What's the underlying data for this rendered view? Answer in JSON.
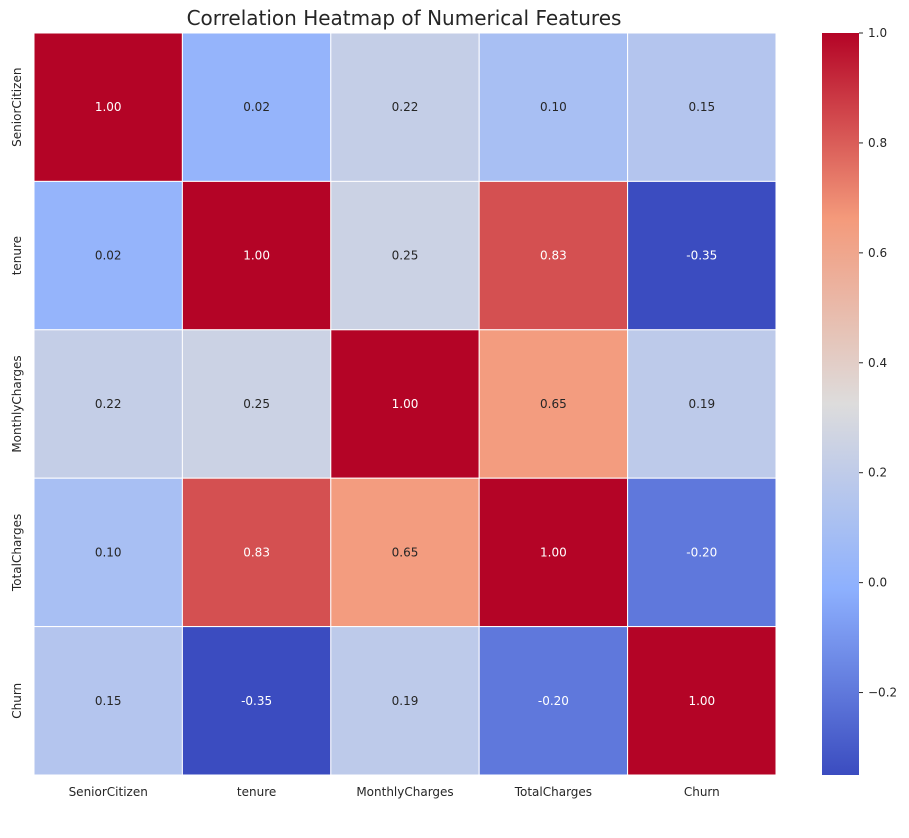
{
  "chart_data": {
    "type": "heatmap",
    "title": "Correlation Heatmap of Numerical Features",
    "x_labels": [
      "SeniorCitizen",
      "tenure",
      "MonthlyCharges",
      "TotalCharges",
      "Churn"
    ],
    "y_labels": [
      "SeniorCitizen",
      "tenure",
      "MonthlyCharges",
      "TotalCharges",
      "Churn"
    ],
    "values": [
      [
        1.0,
        0.02,
        0.22,
        0.1,
        0.15
      ],
      [
        0.02,
        1.0,
        0.25,
        0.83,
        -0.35
      ],
      [
        0.22,
        0.25,
        1.0,
        0.65,
        0.19
      ],
      [
        0.1,
        0.83,
        0.65,
        1.0,
        -0.2
      ],
      [
        0.15,
        -0.35,
        0.19,
        -0.2,
        1.0
      ]
    ],
    "annotation_format": "0.00",
    "colormap": "coolwarm",
    "colorbar": {
      "vmin": -0.35,
      "vmax": 1.0,
      "ticks": [
        -0.2,
        0.0,
        0.2,
        0.4,
        0.6,
        0.8,
        1.0
      ],
      "tick_labels": [
        "−0.2",
        "0.0",
        "0.2",
        "0.4",
        "0.6",
        "0.8",
        "1.0"
      ]
    },
    "grid": true,
    "gridline_color": "#ffffff"
  }
}
